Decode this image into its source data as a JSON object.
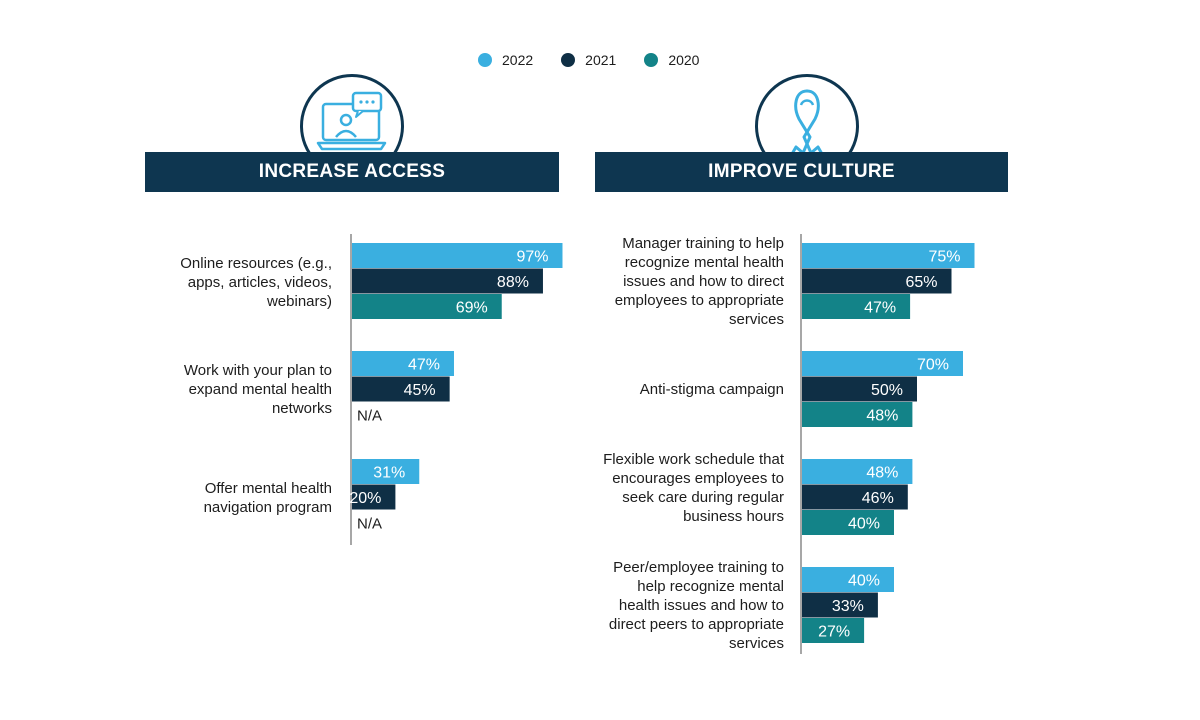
{
  "legend": [
    {
      "label": "2022",
      "color": "#3aafe0"
    },
    {
      "label": "2021",
      "color": "#0f2f45"
    },
    {
      "label": "2020",
      "color": "#138388"
    }
  ],
  "icons": {
    "left": "laptop-chat-icon",
    "right": "awareness-ribbon-icon"
  },
  "chart_data": [
    {
      "type": "bar",
      "orientation": "horizontal",
      "title": "INCREASE ACCESS",
      "xlim": [
        0,
        100
      ],
      "grid": false,
      "series": [
        {
          "name": "2022"
        },
        {
          "name": "2021"
        },
        {
          "name": "2020"
        }
      ],
      "categories": [
        {
          "label": "Online resources (e.g., apps, articles, videos, webinars)",
          "values": [
            97,
            88,
            69
          ],
          "labels": [
            "97%",
            "88%",
            "69%"
          ]
        },
        {
          "label": "Work with your plan to expand mental health networks",
          "values": [
            47,
            45,
            null
          ],
          "labels": [
            "47%",
            "45%",
            "N/A"
          ]
        },
        {
          "label": "Offer mental health navigation program",
          "values": [
            31,
            20,
            null
          ],
          "labels": [
            "31%",
            "20%",
            "N/A"
          ]
        }
      ]
    },
    {
      "type": "bar",
      "orientation": "horizontal",
      "title": "IMPROVE CULTURE",
      "xlim": [
        0,
        100
      ],
      "grid": false,
      "series": [
        {
          "name": "2022"
        },
        {
          "name": "2021"
        },
        {
          "name": "2020"
        }
      ],
      "categories": [
        {
          "label": "Manager training to help recognize mental health issues and how to direct employees to appropriate services",
          "values": [
            75,
            65,
            47
          ],
          "labels": [
            "75%",
            "65%",
            "47%"
          ]
        },
        {
          "label": "Anti-stigma campaign",
          "values": [
            70,
            50,
            48
          ],
          "labels": [
            "70%",
            "50%",
            "48%"
          ]
        },
        {
          "label": "Flexible work schedule that encourages employees to seek care during regular business hours",
          "values": [
            48,
            46,
            40
          ],
          "labels": [
            "48%",
            "46%",
            "40%"
          ]
        },
        {
          "label": "Peer/employee training to help recognize mental health issues and how to direct peers to appropriate services",
          "values": [
            40,
            33,
            27
          ],
          "labels": [
            "40%",
            "33%",
            "27%"
          ]
        }
      ]
    }
  ]
}
